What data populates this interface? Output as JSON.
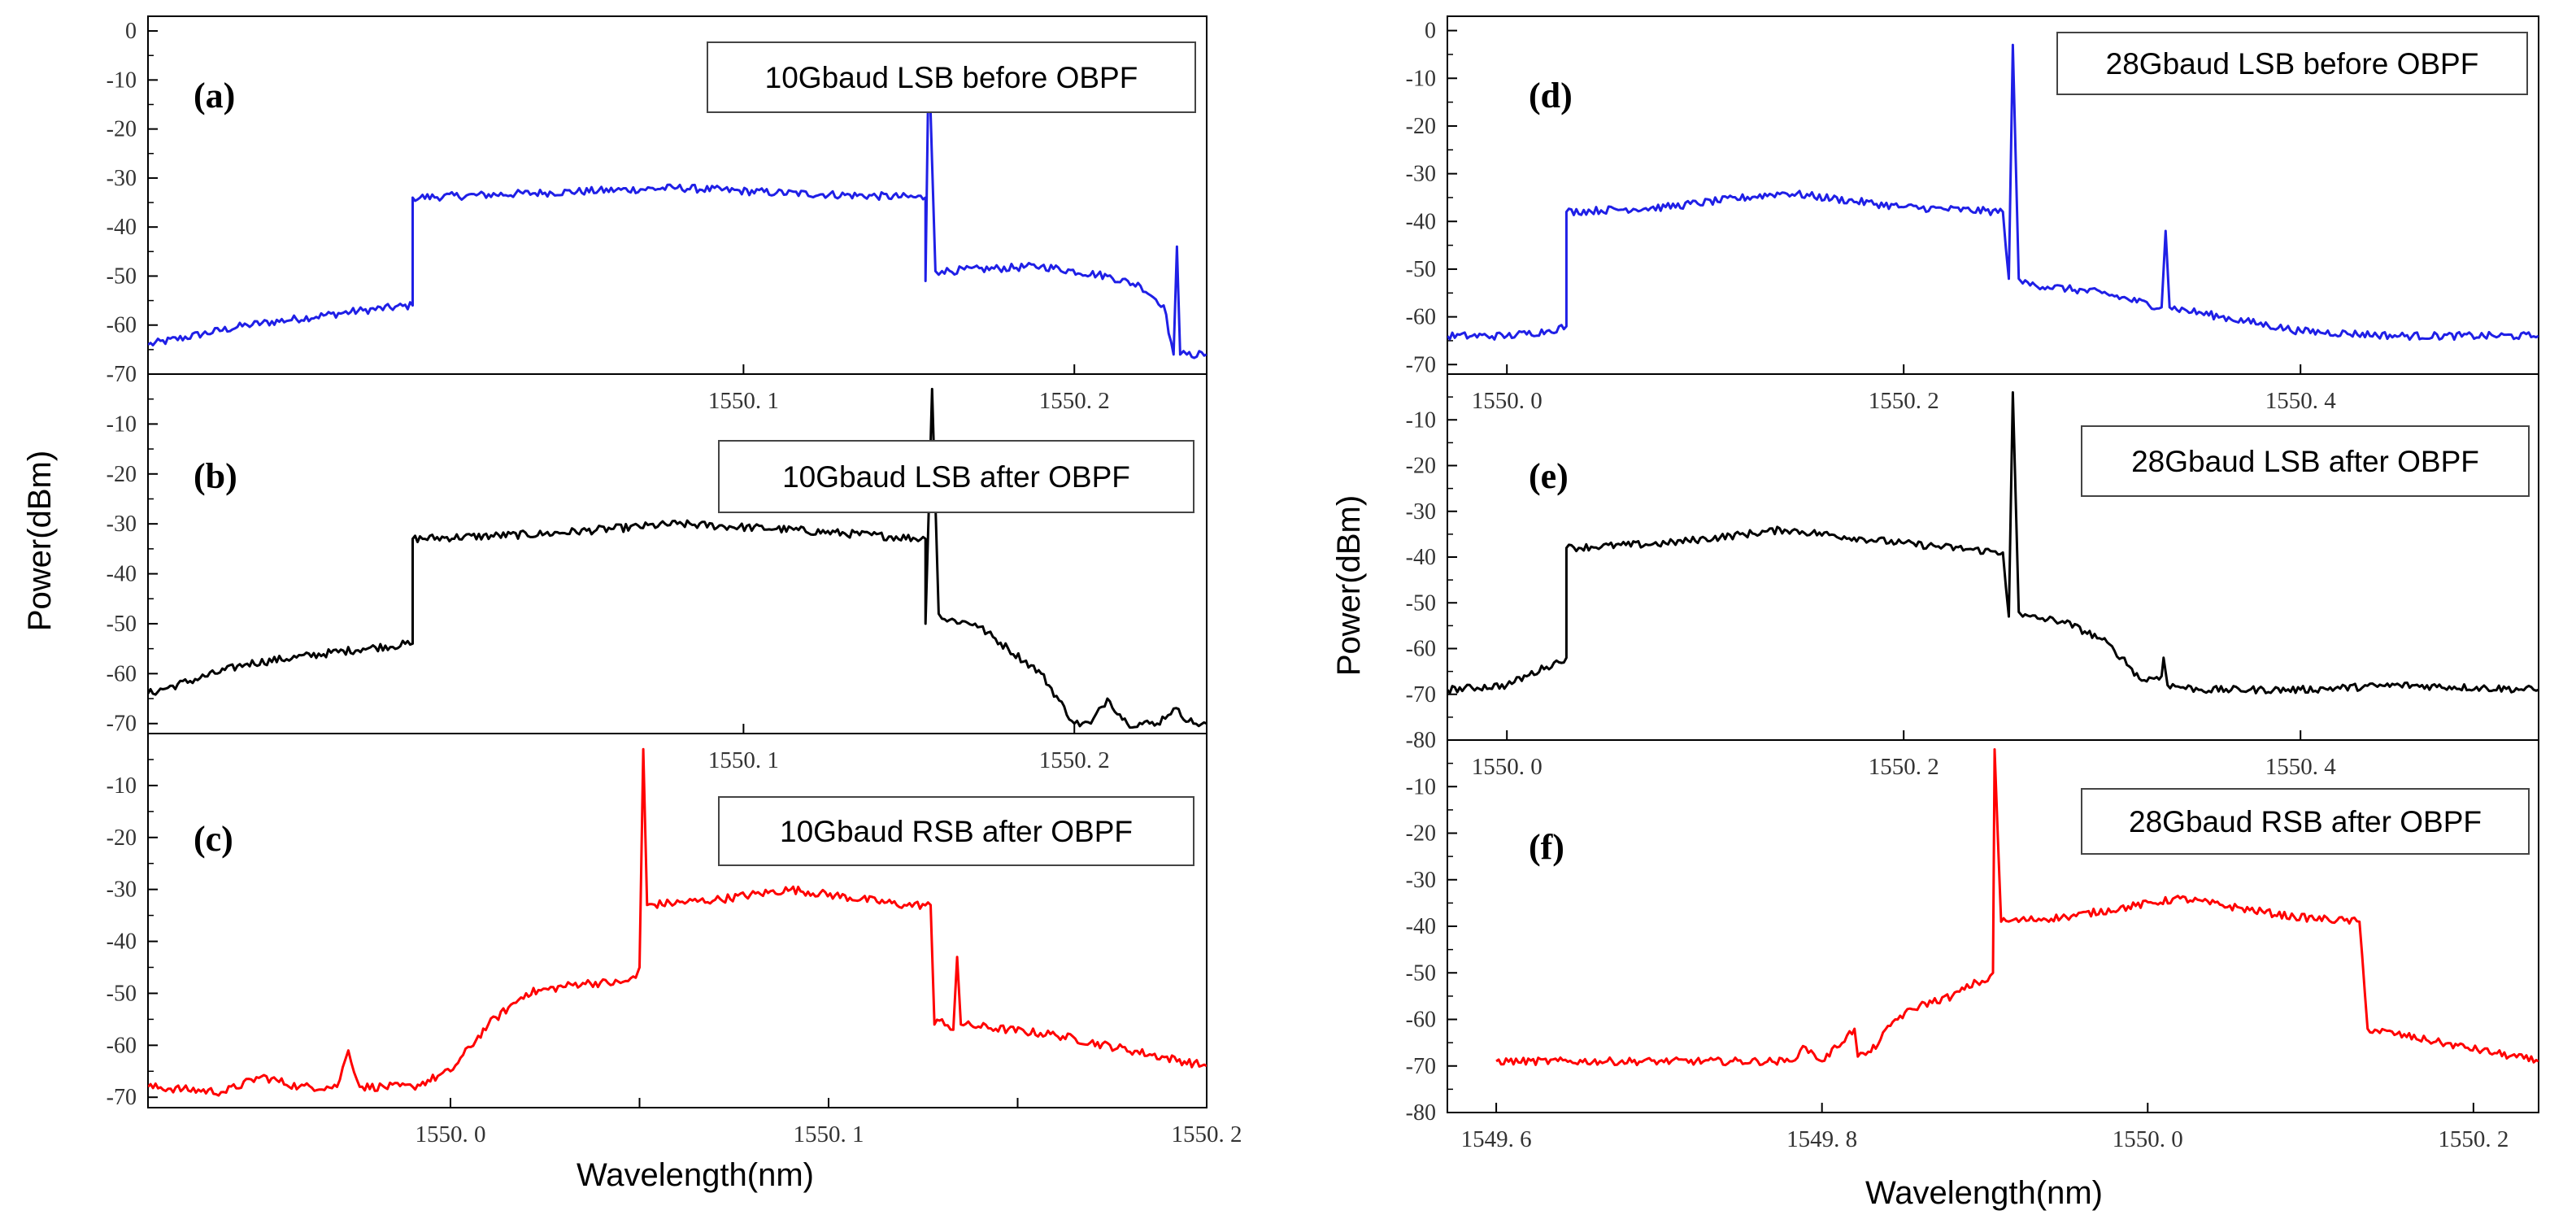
{
  "figure": {
    "left_ylabel": "Power(dBm)",
    "right_ylabel": "Power(dBm)",
    "left_xlabel": "Wavelength(nm)",
    "right_xlabel": "Wavelength(nm)"
  },
  "chart_data": [
    {
      "id": "a",
      "tag": "(a)",
      "type": "line",
      "legend": "10Gbaud LSB before OBPF",
      "color": "#1f1fe6",
      "xlim": [
        1549.92,
        1550.24
      ],
      "ylim": [
        -70,
        3
      ],
      "yticks": [
        0,
        -10,
        -20,
        -30,
        -40,
        -50,
        -60,
        -70
      ],
      "xticks": [
        1550.1,
        1550.2
      ],
      "xtick_labels": [
        "1550. 1",
        "1550. 2"
      ],
      "x_tick_labels_below": true,
      "series": [
        {
          "x": [
            1549.92,
            1549.95,
            1549.985,
            1550.0,
            1550.0,
            1550.04,
            1550.08,
            1550.11,
            1550.155,
            1550.155,
            1550.156,
            1550.158,
            1550.16,
            1550.16,
            1550.19,
            1550.21,
            1550.22,
            1550.227,
            1550.23,
            1550.231,
            1550.232,
            1550.234,
            1550.24
          ],
          "y": [
            -64,
            -60,
            -57,
            -56,
            -34,
            -33,
            -32,
            -33,
            -34,
            -51,
            -4,
            -49,
            -49,
            -49,
            -48,
            -50,
            -52,
            -56,
            -66,
            -44,
            -66,
            -66,
            -66
          ]
        }
      ]
    },
    {
      "id": "b",
      "tag": "(b)",
      "type": "line",
      "legend": "10Gbaud LSB after OBPF",
      "color": "#000000",
      "xlim": [
        1549.92,
        1550.24
      ],
      "ylim": [
        -72,
        0
      ],
      "yticks": [
        -10,
        -20,
        -30,
        -40,
        -50,
        -60,
        -70
      ],
      "xticks": [
        1550.1,
        1550.2
      ],
      "xtick_labels": [
        "1550. 1",
        "1550. 2"
      ],
      "x_tick_labels_below": true,
      "series": [
        {
          "x": [
            1549.92,
            1549.95,
            1549.985,
            1550.0,
            1550.0,
            1550.04,
            1550.08,
            1550.11,
            1550.155,
            1550.155,
            1550.157,
            1550.159,
            1550.16,
            1550.17,
            1550.18,
            1550.19,
            1550.2,
            1550.205,
            1550.21,
            1550.216,
            1550.225,
            1550.23,
            1550.236,
            1550.24
          ],
          "y": [
            -64,
            -58,
            -55,
            -54,
            -33,
            -32,
            -30,
            -31,
            -33,
            -50,
            -3,
            -48,
            -49,
            -50,
            -55,
            -60,
            -70,
            -70,
            -65,
            -70,
            -70,
            -67,
            -70,
            -70
          ]
        }
      ]
    },
    {
      "id": "c",
      "tag": "(c)",
      "type": "line",
      "legend": "10Gbaud RSB after OBPF",
      "color": "#ff0000",
      "xlim": [
        1549.92,
        1550.2
      ],
      "ylim": [
        -72,
        0
      ],
      "yticks": [
        -10,
        -20,
        -30,
        -40,
        -50,
        -60,
        -70
      ],
      "xticks": [
        1550.0,
        1550.05,
        1550.1,
        1550.15,
        1550.2
      ],
      "xtick_labels": [
        "1550. 0",
        "",
        "1550. 1",
        "",
        "1550. 2"
      ],
      "x_tick_labels_below": true,
      "series": [
        {
          "x": [
            1549.92,
            1549.94,
            1549.95,
            1549.96,
            1549.97,
            1549.973,
            1549.976,
            1549.99,
            1550.0,
            1550.01,
            1550.02,
            1550.035,
            1550.045,
            1550.049,
            1550.05,
            1550.051,
            1550.052,
            1550.07,
            1550.09,
            1550.12,
            1550.127,
            1550.128,
            1550.13,
            1550.133,
            1550.134,
            1550.135,
            1550.16,
            1550.2
          ],
          "y": [
            -68,
            -69,
            -66,
            -68,
            -68,
            -61,
            -68,
            -68,
            -65,
            -56,
            -50,
            -48,
            -48,
            -47,
            -45,
            -3,
            -33,
            -32,
            -30,
            -33,
            -33,
            -56,
            -55,
            -57,
            -43,
            -56,
            -58,
            -64
          ]
        }
      ]
    },
    {
      "id": "d",
      "tag": "(d)",
      "type": "line",
      "legend": "28Gbaud LSB before OBPF",
      "color": "#1f1fe6",
      "xlim": [
        1549.97,
        1550.52
      ],
      "ylim": [
        -72,
        3
      ],
      "yticks": [
        0,
        -10,
        -20,
        -30,
        -40,
        -50,
        -60,
        -70
      ],
      "xticks": [
        1550.0,
        1550.2,
        1550.4
      ],
      "xtick_labels": [
        "1550. 0",
        "1550. 2",
        "1550. 4"
      ],
      "x_tick_labels_below": true,
      "series": [
        {
          "x": [
            1549.97,
            1550.0,
            1550.02,
            1550.03,
            1550.03,
            1550.08,
            1550.14,
            1550.2,
            1550.25,
            1550.253,
            1550.255,
            1550.258,
            1550.26,
            1550.3,
            1550.33,
            1550.332,
            1550.334,
            1550.36,
            1550.4,
            1550.45,
            1550.52
          ],
          "y": [
            -64,
            -64,
            -63,
            -62,
            -38,
            -37,
            -34,
            -37,
            -38,
            -52,
            -3,
            -52,
            -53,
            -55,
            -58,
            -42,
            -58,
            -60,
            -63,
            -64,
            -64
          ]
        }
      ]
    },
    {
      "id": "e",
      "tag": "(e)",
      "type": "line",
      "legend": "28Gbaud LSB after OBPF",
      "color": "#000000",
      "xlim": [
        1549.97,
        1550.52
      ],
      "ylim": [
        -80,
        0
      ],
      "yticks": [
        -10,
        -20,
        -30,
        -40,
        -50,
        -60,
        -70,
        -80
      ],
      "xticks": [
        1550.0,
        1550.2,
        1550.4
      ],
      "xtick_labels": [
        "1550. 0",
        "1550. 2",
        "1550. 4"
      ],
      "x_tick_labels_below": true,
      "series": [
        {
          "x": [
            1549.97,
            1550.0,
            1550.02,
            1550.03,
            1550.03,
            1550.08,
            1550.14,
            1550.2,
            1550.25,
            1550.253,
            1550.255,
            1550.258,
            1550.26,
            1550.28,
            1550.3,
            1550.31,
            1550.32,
            1550.33,
            1550.331,
            1550.333,
            1550.35,
            1550.4,
            1550.45,
            1550.52
          ],
          "y": [
            -69,
            -68,
            -64,
            -62,
            -38,
            -37,
            -34,
            -37,
            -39,
            -53,
            -4,
            -52,
            -53,
            -54,
            -58,
            -62,
            -67,
            -66,
            -62,
            -68,
            -69,
            -69,
            -68,
            -69
          ]
        }
      ]
    },
    {
      "id": "f",
      "tag": "(f)",
      "type": "line",
      "legend": "28Gbaud RSB after OBPF",
      "color": "#ff0000",
      "xlim": [
        1549.57,
        1550.24
      ],
      "ylim": [
        -80,
        0
      ],
      "yticks": [
        -10,
        -20,
        -30,
        -40,
        -50,
        -60,
        -70,
        -80
      ],
      "xticks": [
        1549.6,
        1549.8,
        1550.0,
        1550.2
      ],
      "xtick_labels": [
        "1549. 6",
        "1549. 8",
        "1550. 0",
        "1550. 2"
      ],
      "x_tick_labels_below": true,
      "series": [
        {
          "x": [
            1549.6,
            1549.7,
            1549.78,
            1549.79,
            1549.8,
            1549.82,
            1549.822,
            1549.83,
            1549.845,
            1549.86,
            1549.88,
            1549.895,
            1549.9,
            1549.905,
            1549.906,
            1549.91,
            1549.95,
            1550.02,
            1550.09,
            1550.13,
            1550.135,
            1550.18,
            1550.24
          ],
          "y": [
            -69,
            -69,
            -69,
            -66,
            -69,
            -62,
            -68,
            -67,
            -60,
            -57,
            -55,
            -52,
            -52,
            -50,
            -2,
            -39,
            -38,
            -34,
            -38,
            -39,
            -62,
            -65,
            -69
          ]
        }
      ]
    }
  ]
}
